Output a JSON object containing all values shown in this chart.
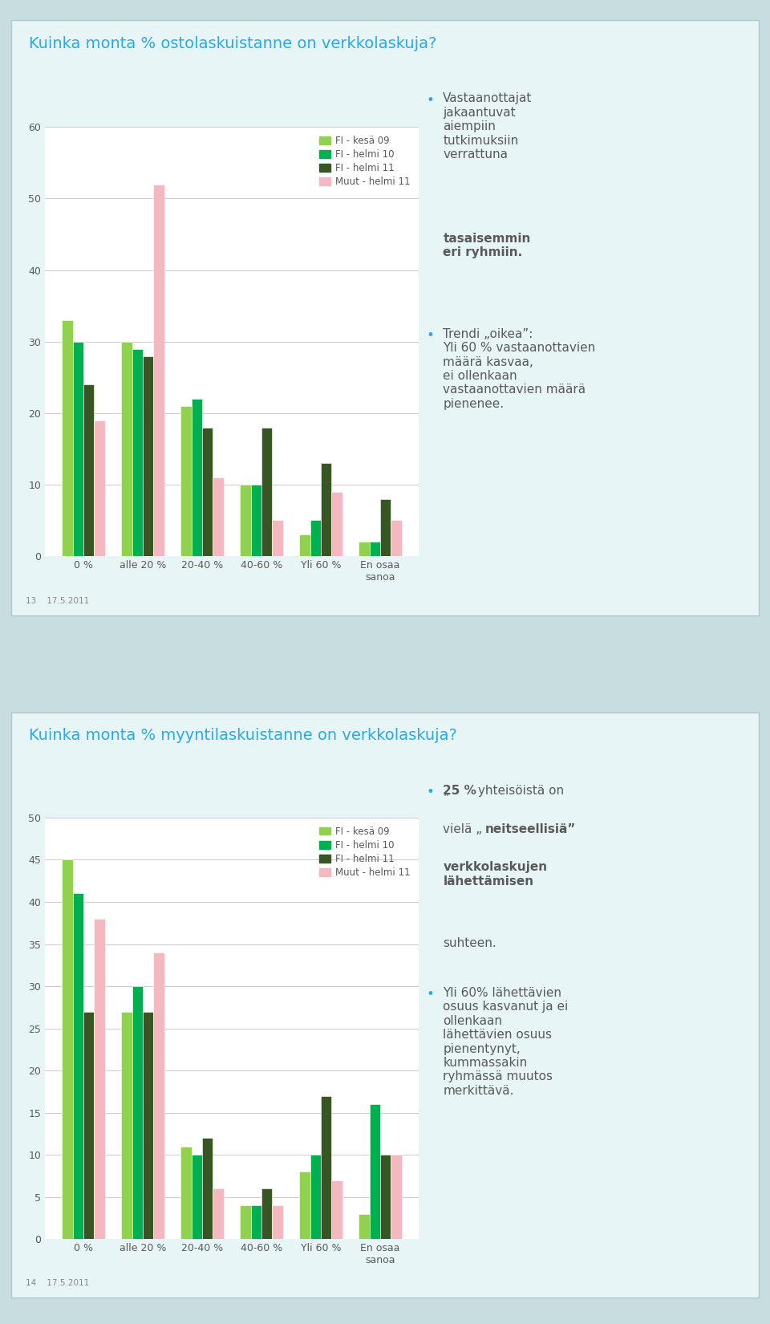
{
  "chart1": {
    "title": "Kuinka monta % ostolaskuistanne on verkkolaskuja?",
    "categories": [
      "0 %",
      "alle 20 %",
      "20-40 %",
      "40-60 %",
      "Yli 60 %",
      "En osaa\nsanoa"
    ],
    "series": [
      {
        "label": "FI - kesä 09",
        "color": "#92d050",
        "values": [
          33,
          30,
          21,
          10,
          3,
          2
        ]
      },
      {
        "label": "FI - helmi 10",
        "color": "#00b050",
        "values": [
          30,
          29,
          22,
          10,
          5,
          2
        ]
      },
      {
        "label": "FI - helmi 11",
        "color": "#375623",
        "values": [
          24,
          28,
          18,
          18,
          13,
          8
        ]
      },
      {
        "label": "Muut - helmi 11",
        "color": "#f4b8c1",
        "values": [
          19,
          52,
          11,
          5,
          9,
          5
        ]
      }
    ],
    "ylim": [
      0,
      60
    ],
    "yticks": [
      0,
      10,
      20,
      30,
      40,
      50,
      60
    ],
    "footnote": "13    17.5.2011"
  },
  "chart2": {
    "title": "Kuinka monta % myyntilaskuistanne on verkkolaskuja?",
    "categories": [
      "0 %",
      "alle 20 %",
      "20-40 %",
      "40-60 %",
      "Yli 60 %",
      "En osaa\nsanoa"
    ],
    "series": [
      {
        "label": "FI - kesä 09",
        "color": "#92d050",
        "values": [
          45,
          27,
          11,
          4,
          8,
          3
        ]
      },
      {
        "label": "FI - helmi 10",
        "color": "#00b050",
        "values": [
          41,
          30,
          10,
          4,
          10,
          16
        ]
      },
      {
        "label": "FI - helmi 11",
        "color": "#375623",
        "values": [
          27,
          27,
          12,
          6,
          17,
          10
        ]
      },
      {
        "label": "Muut - helmi 11",
        "color": "#f4b8c1",
        "values": [
          38,
          34,
          6,
          4,
          7,
          10
        ]
      }
    ],
    "ylim": [
      0,
      50
    ],
    "yticks": [
      0,
      5,
      10,
      15,
      20,
      25,
      30,
      35,
      40,
      45,
      50
    ],
    "footnote": "14    17.5.2011"
  },
  "outer_bg": "#c8dde0",
  "panel_bg_start": "#e8f5f6",
  "panel_border": "#b0c8cc",
  "title_color": "#29abe2",
  "grid_color": "#cccccc",
  "text_color": "#595959",
  "bullet_color": "#29abe2",
  "legend_fontsize": 8.5,
  "axis_fontsize": 9,
  "bar_width": 0.18
}
